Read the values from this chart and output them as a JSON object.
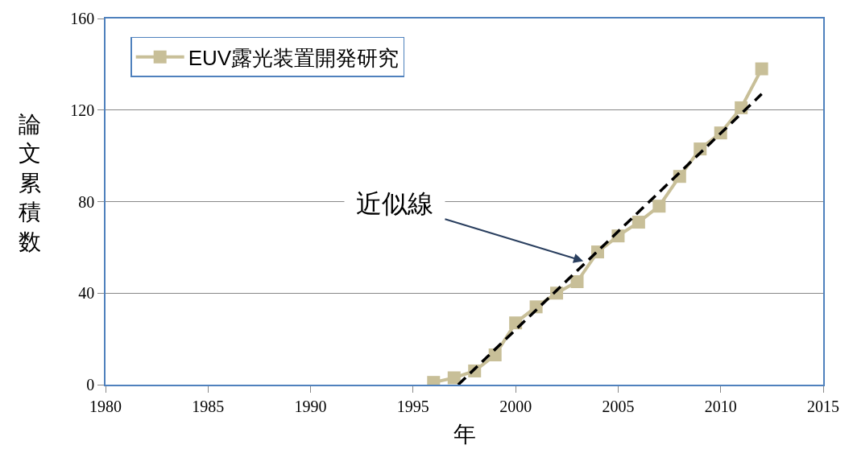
{
  "chart_data": {
    "type": "line",
    "xlabel": "年",
    "ylabel": "論文累積数",
    "x": [
      1996,
      1997,
      1998,
      1999,
      2000,
      2001,
      2002,
      2003,
      2004,
      2005,
      2006,
      2007,
      2008,
      2009,
      2010,
      2011,
      2012
    ],
    "series": [
      {
        "name": "EUV露光装置開発研究",
        "color": "#c8bf98",
        "marker": "square",
        "line_style": "solid",
        "values": [
          1,
          3,
          6,
          13,
          27,
          34,
          40,
          45,
          58,
          65,
          71,
          78,
          91,
          103,
          110,
          121,
          138
        ]
      },
      {
        "type": "line",
        "color": "#000000",
        "marker": "none",
        "line_style": "dashed",
        "x": [
          1997.2,
          2012
        ],
        "values": [
          0,
          127
        ]
      }
    ],
    "annotations": [
      {
        "text": "近似線",
        "x": 2003.3,
        "y": 54
      }
    ],
    "xlim": [
      1980,
      2015
    ],
    "xticks": [
      1980,
      1985,
      1990,
      1995,
      2000,
      2005,
      2010,
      2015
    ],
    "ylim": [
      0,
      160
    ],
    "yticks": [
      0,
      40,
      80,
      120,
      160
    ],
    "grid": "y",
    "legend": "top left"
  }
}
